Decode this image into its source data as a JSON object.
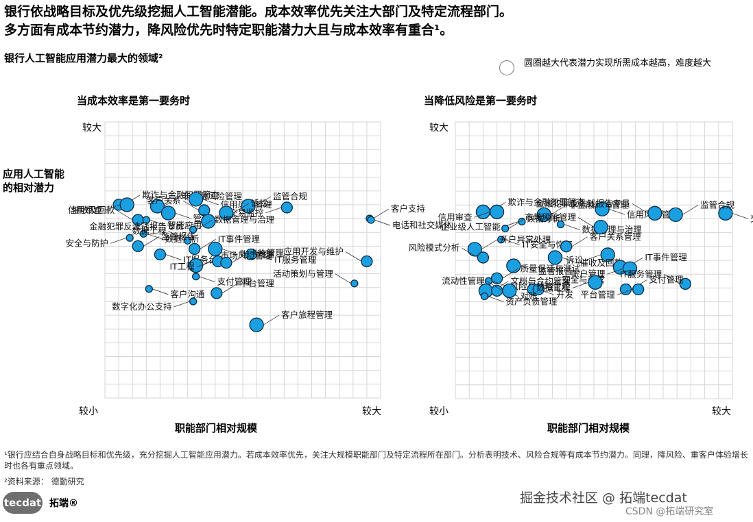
{
  "header": {
    "title_line1": "银行依战略目标及优先级挖掘人工智能潜能。成本效率优先关注大部门及特定流程部门。",
    "title_line2": "多方面有成本节约潜力，降风险优先时特定职能潜力大且与成本效率有重合¹。",
    "subtitle": "银行人工智能应用潜力最大的领域²",
    "legend_note": "圆圈越大代表潜力实现所需成本越高，难度越大"
  },
  "y_axis_label": "应用人工智能的相对潜力",
  "footnote1": "¹银行应结合自身战略目标和优先级，充分挖掘人工智能应用潜力。若成本效率优先，关注大规模职能部门及特定流程所在部门。分析表明技术、风险合规等有成本节约潜力。同理，降风险、重客户体验增长时也各有重点领域。",
  "footnote2": "²资料来源： 德勤研究",
  "logo": {
    "text": "tecdat",
    "brand": "拓端®"
  },
  "watermark": {
    "line1": "掘金技术社区 @ 拓端tecdat",
    "line2": "CSDN @拓端研究室"
  },
  "colors": {
    "bubble": "#1a9fe0",
    "bubble_stroke": "#0b2a44",
    "grid": "#d6d6d6"
  },
  "chart_data": [
    {
      "type": "scatter",
      "title": "当成本效率是第一要务时",
      "xlabel": "职能部门相对规模",
      "ylabel": "应用人工智能的相对潜力",
      "x_ticks": [
        "较小",
        "较大"
      ],
      "y_ticks": [
        "较小",
        "较大"
      ],
      "xlim": [
        0,
        10
      ],
      "ylim": [
        0,
        10
      ],
      "grid": true,
      "points": [
        {
          "label": "欺诈与金融犯罪筛查",
          "x": 0.5,
          "y": 7.0,
          "size": 2
        },
        {
          "label": "信用审查",
          "x": 0.8,
          "y": 7.0,
          "size": 3
        },
        {
          "label": "非金融风险管理",
          "x": 1.9,
          "y": 6.95,
          "size": 3
        },
        {
          "label": "信用风险管理",
          "x": 3.3,
          "y": 7.2,
          "size": 3
        },
        {
          "label": "客户关系",
          "x": 3.6,
          "y": 6.8,
          "size": 2
        },
        {
          "label": "管理",
          "x": 2.3,
          "y": 6.7,
          "size": 3
        },
        {
          "label": "监管合规",
          "x": 5.2,
          "y": 6.95,
          "size": 3
        },
        {
          "label": "交易监控",
          "x": 6.6,
          "y": 6.9,
          "size": 2
        },
        {
          "label": "客户支持",
          "x": 9.6,
          "y": 6.5,
          "size": 1
        },
        {
          "label": "电话和社交媒体",
          "x": 9.65,
          "y": 6.45,
          "size": 1
        },
        {
          "label": "催收及回款",
          "x": 1.2,
          "y": 6.45,
          "size": 2
        },
        {
          "label": "智能应用",
          "x": 1.5,
          "y": 6.45,
          "size": 1
        },
        {
          "label": "诉讼",
          "x": 4.4,
          "y": 6.7,
          "size": 3
        },
        {
          "label": "金融犯罪反洗钱报告专员",
          "x": 3.75,
          "y": 6.4,
          "size": 3
        },
        {
          "label": "数据管理与治理",
          "x": 3.2,
          "y": 6.1,
          "size": 1
        },
        {
          "label": "数据分析",
          "x": 1.4,
          "y": 5.95,
          "size": 1
        },
        {
          "label": "数据工程",
          "x": 3.0,
          "y": 5.7,
          "size": 1
        },
        {
          "label": "账户管理",
          "x": 4.0,
          "y": 5.4,
          "size": 3
        },
        {
          "label": "IT事件管理",
          "x": 3.25,
          "y": 5.4,
          "size": 2
        },
        {
          "label": "安全与防护",
          "x": 0.9,
          "y": 5.8,
          "size": 1
        },
        {
          "label": "监管报告",
          "x": 1.2,
          "y": 5.5,
          "size": 2
        },
        {
          "label": "IT服务管理",
          "x": 5.3,
          "y": 5.2,
          "size": 2
        },
        {
          "label": "应用开发与维护",
          "x": 9.5,
          "y": 4.95,
          "size": 2
        },
        {
          "label": "IT服务台",
          "x": 2.0,
          "y": 5.2,
          "size": 2
        },
        {
          "label": "市场风险管理",
          "x": 3.3,
          "y": 4.8,
          "size": 3
        },
        {
          "label": "IT工程",
          "x": 4.1,
          "y": 4.95,
          "size": 2
        },
        {
          "label": "卡片管理",
          "x": 4.4,
          "y": 4.9,
          "size": 2
        },
        {
          "label": "支付管理",
          "x": 3.3,
          "y": 4.4,
          "size": 1
        },
        {
          "label": "活动策划与管理",
          "x": 9.05,
          "y": 4.15,
          "size": 1
        },
        {
          "label": "客户沟通",
          "x": 1.6,
          "y": 3.95,
          "size": 1
        },
        {
          "label": "平台管理",
          "x": 4.05,
          "y": 3.8,
          "size": 2
        },
        {
          "label": "数字化办公支持",
          "x": 3.2,
          "y": 3.5,
          "size": 1
        },
        {
          "label": "客户旅程管理",
          "x": 5.5,
          "y": 2.65,
          "size": 3
        }
      ]
    },
    {
      "type": "scatter",
      "title": "当降低风险是第一要务时",
      "xlabel": "职能部门相对规模",
      "ylabel": "应用人工智能的相对潜力",
      "x_ticks": [
        "较小",
        "较大"
      ],
      "y_ticks": [
        "较小",
        "较大"
      ],
      "xlim": [
        0,
        10
      ],
      "ylim": [
        0,
        10
      ],
      "grid": true,
      "points": [
        {
          "label": "欺诈与金融犯罪筛查",
          "x": 1.0,
          "y": 6.75,
          "size": 3
        },
        {
          "label": "信用审查",
          "x": 1.5,
          "y": 6.75,
          "size": 3
        },
        {
          "label": "非金融风险管理",
          "x": 3.2,
          "y": 6.65,
          "size": 3
        },
        {
          "label": "信用风险管理",
          "x": 5.3,
          "y": 6.85,
          "size": 3
        },
        {
          "label": "金融犯罪反洗钱报告专员",
          "x": 7.2,
          "y": 6.7,
          "size": 3
        },
        {
          "label": "交易监控",
          "x": 9.75,
          "y": 6.7,
          "size": 3
        },
        {
          "label": "监管合规",
          "x": 7.95,
          "y": 6.65,
          "size": 3
        },
        {
          "label": "企业级人工智能",
          "x": 2.4,
          "y": 6.4,
          "size": 1
        },
        {
          "label": "数据分析",
          "x": 1.8,
          "y": 6.15,
          "size": 1
        },
        {
          "label": "数据管理与治理",
          "x": 3.8,
          "y": 6.3,
          "size": 1
        },
        {
          "label": "市场风险管理",
          "x": 5.25,
          "y": 6.2,
          "size": 3
        },
        {
          "label": "IT安全与恢复",
          "x": 1.65,
          "y": 5.75,
          "size": 1
        },
        {
          "label": "客户关系管理",
          "x": 4.0,
          "y": 5.5,
          "size": 2
        },
        {
          "label": "诉讼",
          "x": 5.5,
          "y": 5.2,
          "size": 3
        },
        {
          "label": "开户异常处理",
          "x": 0.7,
          "y": 5.4,
          "size": 3
        },
        {
          "label": "催收及回款",
          "x": 3.6,
          "y": 5.1,
          "size": 3
        },
        {
          "label": "风险模式分析",
          "x": 1.0,
          "y": 5.1,
          "size": 2
        },
        {
          "label": "监管报告",
          "x": 2.1,
          "y": 4.8,
          "size": 3
        },
        {
          "label": "IT事件管理",
          "x": 5.95,
          "y": 4.75,
          "size": 3
        },
        {
          "label": "账户管理",
          "x": 6.3,
          "y": 4.7,
          "size": 3
        },
        {
          "label": "质量保证与测试",
          "x": 1.5,
          "y": 4.35,
          "size": 2
        },
        {
          "label": "风险与战略管理",
          "x": 1.2,
          "y": 4.25,
          "size": 1
        },
        {
          "label": "IT服务管理",
          "x": 8.3,
          "y": 4.15,
          "size": 2
        },
        {
          "label": "开发",
          "x": 2.8,
          "y": 3.95,
          "size": 2
        },
        {
          "label": "安全与运营",
          "x": 3.0,
          "y": 3.95,
          "size": 2
        },
        {
          "label": "数据工程",
          "x": 5.05,
          "y": 4.2,
          "size": 3
        },
        {
          "label": "文档与合约管理",
          "x": 1.1,
          "y": 3.9,
          "size": 3
        },
        {
          "label": "对账",
          "x": 1.5,
          "y": 3.9,
          "size": 2
        },
        {
          "label": "流动性管理",
          "x": 1.95,
          "y": 3.9,
          "size": 3
        },
        {
          "label": "资产负债管理",
          "x": 1.05,
          "y": 3.7,
          "size": 1
        },
        {
          "label": "支付管理",
          "x": 6.15,
          "y": 3.95,
          "size": 2
        },
        {
          "label": "平台管理",
          "x": 6.6,
          "y": 3.95,
          "size": 2
        }
      ]
    }
  ]
}
